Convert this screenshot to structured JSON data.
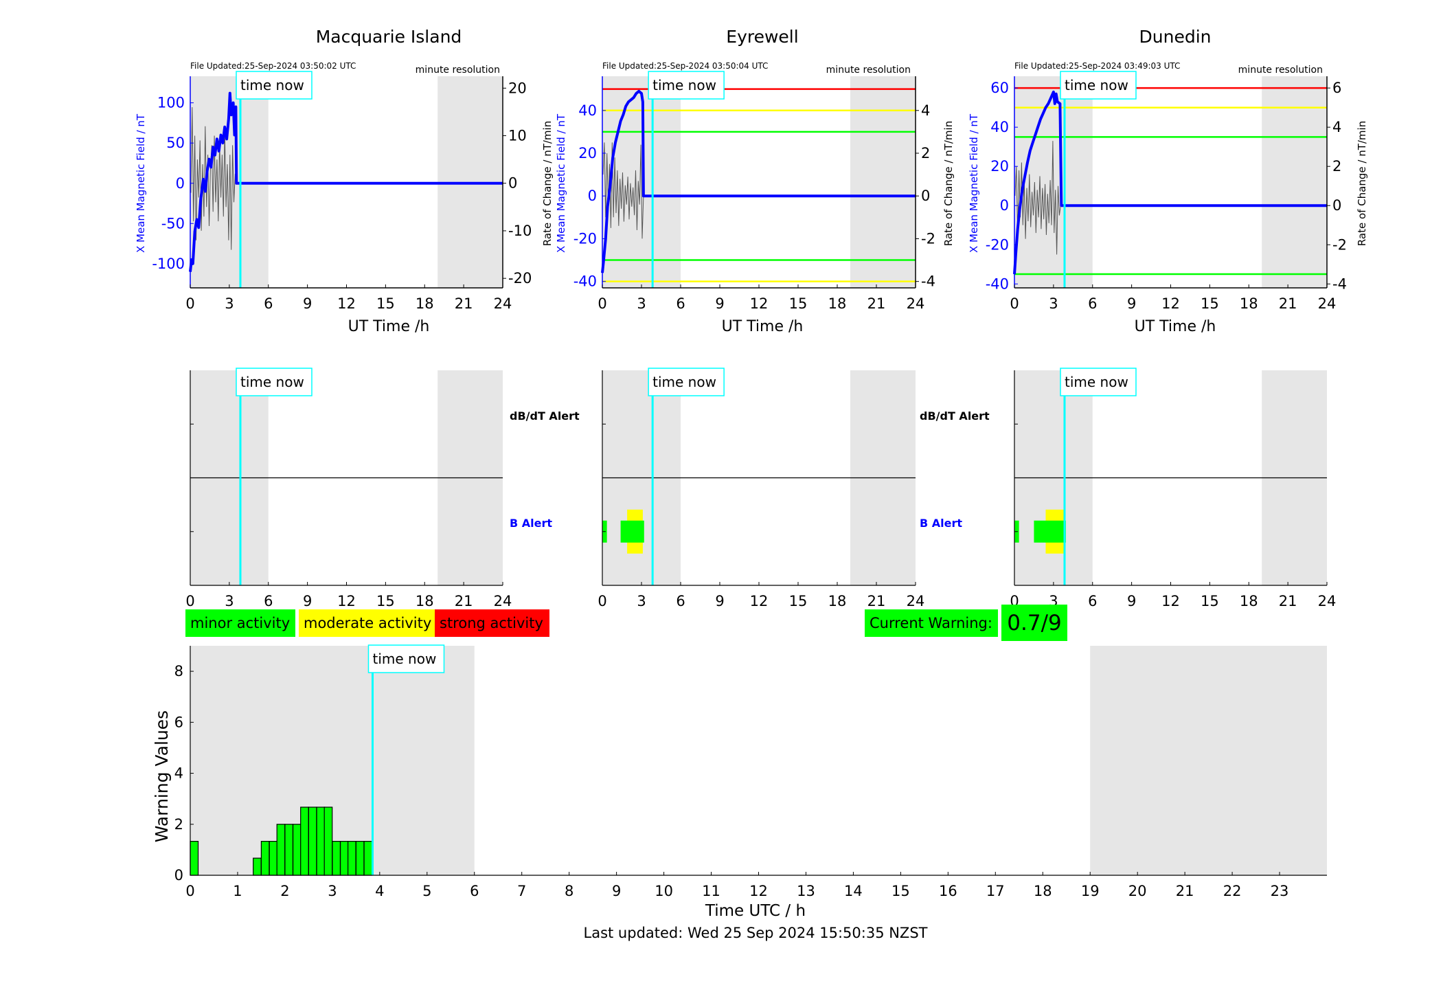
{
  "colors": {
    "minor": "#00ff00",
    "moderate": "#ffff00",
    "strong": "#ff0000",
    "field": "#0000ff",
    "now": "#00ffff",
    "shade": "#e6e6e6"
  },
  "now_label": "time now",
  "legend": {
    "minor": "minor activity",
    "moderate": "moderate activity",
    "strong": "strong activity"
  },
  "current_warning": {
    "label": "Current Warning:",
    "value": "0.7/9"
  },
  "footer": "Last updated: Wed 25 Sep 2024 15:50:35 NZST",
  "chart_data": [
    {
      "id": "macquarie",
      "type": "line",
      "title": "Macquarie Island",
      "file_updated": "File Updated:25-Sep-2024 03:50:02 UTC",
      "resolution": "minute resolution",
      "xlabel": "UT Time /h",
      "ylabel_left": "X Mean Magnetic Field / nT",
      "ylabel_right": "Rate of Change / nT/min",
      "xlim": [
        0,
        24
      ],
      "xticks": [
        0,
        3,
        6,
        9,
        12,
        15,
        18,
        21,
        24
      ],
      "ylim_left": [
        -130,
        133
      ],
      "yticks_left": [
        -100,
        -50,
        0,
        50,
        100
      ],
      "ylim_right": [
        -22,
        22.5
      ],
      "yticks_right": [
        -20,
        -10,
        0,
        10,
        20
      ],
      "now": 3.85,
      "shade": [
        [
          0,
          6
        ],
        [
          19,
          24
        ]
      ],
      "thresholds": [],
      "field": [
        [
          0,
          -110
        ],
        [
          0.1,
          -95
        ],
        [
          0.2,
          -100
        ],
        [
          0.35,
          -60
        ],
        [
          0.5,
          -45
        ],
        [
          0.65,
          -55
        ],
        [
          0.8,
          -20
        ],
        [
          1,
          5
        ],
        [
          1.15,
          -10
        ],
        [
          1.3,
          15
        ],
        [
          1.45,
          30
        ],
        [
          1.6,
          20
        ],
        [
          1.75,
          45
        ],
        [
          1.9,
          35
        ],
        [
          2.05,
          55
        ],
        [
          2.2,
          40
        ],
        [
          2.35,
          60
        ],
        [
          2.5,
          50
        ],
        [
          2.65,
          70
        ],
        [
          2.8,
          55
        ],
        [
          2.95,
          80
        ],
        [
          3.05,
          112
        ],
        [
          3.15,
          85
        ],
        [
          3.3,
          100
        ],
        [
          3.4,
          60
        ],
        [
          3.5,
          95
        ],
        [
          3.55,
          0
        ],
        [
          24,
          0
        ]
      ],
      "rate": [
        [
          0.05,
          -2
        ],
        [
          0.15,
          16
        ],
        [
          0.25,
          -8
        ],
        [
          0.35,
          10
        ],
        [
          0.45,
          -12
        ],
        [
          0.55,
          5
        ],
        [
          0.65,
          -3
        ],
        [
          0.75,
          9
        ],
        [
          0.85,
          -10
        ],
        [
          0.95,
          4
        ],
        [
          1.05,
          -7
        ],
        [
          1.15,
          12
        ],
        [
          1.25,
          -5
        ],
        [
          1.35,
          6
        ],
        [
          1.45,
          -9
        ],
        [
          1.55,
          3
        ],
        [
          1.65,
          8
        ],
        [
          1.75,
          -6
        ],
        [
          1.85,
          10
        ],
        [
          1.95,
          -4
        ],
        [
          2.05,
          5
        ],
        [
          2.15,
          -8
        ],
        [
          2.25,
          9
        ],
        [
          2.35,
          -3
        ],
        [
          2.45,
          6
        ],
        [
          2.55,
          -7
        ],
        [
          2.65,
          11
        ],
        [
          2.75,
          -5
        ],
        [
          2.85,
          4
        ],
        [
          2.95,
          -12
        ],
        [
          3.05,
          6
        ],
        [
          3.15,
          -14
        ],
        [
          3.25,
          8
        ],
        [
          3.35,
          -4
        ],
        [
          3.45,
          2
        ],
        [
          3.55,
          0
        ],
        [
          24,
          0
        ]
      ]
    },
    {
      "id": "eyrewell",
      "type": "line",
      "title": "Eyrewell",
      "file_updated": "File Updated:25-Sep-2024 03:50:04 UTC",
      "resolution": "minute resolution",
      "xlabel": "UT Time /h",
      "ylabel_left": "X Mean Magnetic Field / nT",
      "ylabel_right": "Rate of Change / nT/min",
      "xlim": [
        0,
        24
      ],
      "xticks": [
        0,
        3,
        6,
        9,
        12,
        15,
        18,
        21,
        24
      ],
      "ylim_left": [
        -43,
        56
      ],
      "yticks_left": [
        -40,
        -20,
        0,
        20,
        40
      ],
      "ylim_right": [
        -4.3,
        5.6
      ],
      "yticks_right": [
        -4,
        -2,
        0,
        2,
        4
      ],
      "now": 3.85,
      "shade": [
        [
          0,
          6
        ],
        [
          19,
          24
        ]
      ],
      "thresholds": [
        {
          "color": "red",
          "value": 50
        },
        {
          "color": "yellow",
          "value": 40
        },
        {
          "color": "yellow",
          "value": -40
        },
        {
          "color": "green",
          "value": 30
        },
        {
          "color": "green",
          "value": -30
        }
      ],
      "field": [
        [
          0,
          -36
        ],
        [
          0.1,
          -30
        ],
        [
          0.25,
          -20
        ],
        [
          0.4,
          -5
        ],
        [
          0.6,
          5
        ],
        [
          0.8,
          18
        ],
        [
          1,
          25
        ],
        [
          1.2,
          30
        ],
        [
          1.4,
          35
        ],
        [
          1.6,
          38
        ],
        [
          1.8,
          42
        ],
        [
          2,
          44
        ],
        [
          2.2,
          45
        ],
        [
          2.4,
          46
        ],
        [
          2.6,
          48
        ],
        [
          2.8,
          49
        ],
        [
          3,
          48
        ],
        [
          3.1,
          44
        ],
        [
          3.15,
          0
        ],
        [
          24,
          0
        ]
      ],
      "rate": [
        [
          0.05,
          1
        ],
        [
          0.15,
          2.5
        ],
        [
          0.25,
          -1
        ],
        [
          0.35,
          2
        ],
        [
          0.45,
          -0.5
        ],
        [
          0.55,
          1.5
        ],
        [
          0.65,
          -1.5
        ],
        [
          0.75,
          2.5
        ],
        [
          0.85,
          -1
        ],
        [
          0.95,
          1.8
        ],
        [
          1.05,
          -0.8
        ],
        [
          1.15,
          1.2
        ],
        [
          1.25,
          -1.4
        ],
        [
          1.35,
          0.8
        ],
        [
          1.45,
          -0.6
        ],
        [
          1.55,
          1.1
        ],
        [
          1.65,
          -1.2
        ],
        [
          1.75,
          0.5
        ],
        [
          1.85,
          -0.4
        ],
        [
          1.95,
          0.9
        ],
        [
          2.05,
          -1.1
        ],
        [
          2.15,
          0.6
        ],
        [
          2.25,
          -0.5
        ],
        [
          2.35,
          0.4
        ],
        [
          2.45,
          -0.9
        ],
        [
          2.55,
          1.2
        ],
        [
          2.65,
          -1.6
        ],
        [
          2.75,
          0.7
        ],
        [
          2.85,
          -0.4
        ],
        [
          2.95,
          2.4
        ],
        [
          3.05,
          -2
        ],
        [
          3.15,
          0
        ],
        [
          24,
          0
        ]
      ]
    },
    {
      "id": "dunedin",
      "type": "line",
      "title": "Dunedin",
      "file_updated": "File Updated:25-Sep-2024 03:49:03 UTC",
      "resolution": "minute resolution",
      "xlabel": "UT Time /h",
      "ylabel_left": "X Mean Magnetic Field / nT",
      "ylabel_right": "Rate of Change / nT/min",
      "xlim": [
        0,
        24
      ],
      "xticks": [
        0,
        3,
        6,
        9,
        12,
        15,
        18,
        21,
        24
      ],
      "ylim_left": [
        -42,
        66
      ],
      "yticks_left": [
        -40,
        -20,
        0,
        20,
        40,
        60
      ],
      "ylim_right": [
        -4.2,
        6.6
      ],
      "yticks_right": [
        -4,
        -2,
        0,
        2,
        4,
        6
      ],
      "now": 3.85,
      "shade": [
        [
          0,
          6
        ],
        [
          19,
          24
        ]
      ],
      "thresholds": [
        {
          "color": "red",
          "value": 60
        },
        {
          "color": "yellow",
          "value": 50
        },
        {
          "color": "green",
          "value": 35
        },
        {
          "color": "green",
          "value": -35
        }
      ],
      "field": [
        [
          0,
          -35
        ],
        [
          0.1,
          -25
        ],
        [
          0.25,
          -12
        ],
        [
          0.4,
          -2
        ],
        [
          0.6,
          8
        ],
        [
          0.8,
          15
        ],
        [
          1,
          22
        ],
        [
          1.2,
          28
        ],
        [
          1.4,
          32
        ],
        [
          1.6,
          36
        ],
        [
          1.8,
          40
        ],
        [
          2,
          44
        ],
        [
          2.2,
          47
        ],
        [
          2.4,
          50
        ],
        [
          2.6,
          52
        ],
        [
          2.8,
          55
        ],
        [
          3,
          58
        ],
        [
          3.1,
          52
        ],
        [
          3.2,
          57
        ],
        [
          3.3,
          53
        ],
        [
          3.5,
          52
        ],
        [
          3.6,
          0
        ],
        [
          24,
          0
        ]
      ],
      "rate": [
        [
          0.05,
          0.5
        ],
        [
          0.15,
          2
        ],
        [
          0.25,
          -1.5
        ],
        [
          0.35,
          1.8
        ],
        [
          0.45,
          -0.6
        ],
        [
          0.55,
          2.2
        ],
        [
          0.65,
          -1
        ],
        [
          0.75,
          1.4
        ],
        [
          0.85,
          -1.7
        ],
        [
          0.95,
          0.9
        ],
        [
          1.05,
          -0.8
        ],
        [
          1.15,
          1.6
        ],
        [
          1.25,
          -1.1
        ],
        [
          1.35,
          0.7
        ],
        [
          1.45,
          -0.5
        ],
        [
          1.55,
          1.2
        ],
        [
          1.65,
          -1.4
        ],
        [
          1.75,
          0.8
        ],
        [
          1.85,
          -0.6
        ],
        [
          1.95,
          1.5
        ],
        [
          2.05,
          -1.2
        ],
        [
          2.15,
          0.9
        ],
        [
          2.25,
          -0.7
        ],
        [
          2.35,
          1.1
        ],
        [
          2.45,
          -1.5
        ],
        [
          2.55,
          0.6
        ],
        [
          2.65,
          -0.9
        ],
        [
          2.75,
          1.3
        ],
        [
          2.85,
          -1
        ],
        [
          2.95,
          3.3
        ],
        [
          3.05,
          -1.4
        ],
        [
          3.15,
          0.8
        ],
        [
          3.25,
          -2.5
        ],
        [
          3.35,
          1
        ],
        [
          3.45,
          -0.5
        ],
        [
          3.55,
          0
        ],
        [
          24,
          0
        ]
      ]
    },
    {
      "id": "alert-macquarie",
      "type": "heatmap",
      "title": "",
      "rows": [
        "dB/dT Alert",
        "B Alert"
      ],
      "xlim": [
        0,
        24
      ],
      "xticks": [
        0,
        3,
        6,
        9,
        12,
        15,
        18,
        21,
        24
      ],
      "now": 3.85,
      "shade": [
        [
          0,
          6
        ],
        [
          19,
          24
        ]
      ],
      "blocks": []
    },
    {
      "id": "alert-eyrewell",
      "type": "heatmap",
      "title": "",
      "rows": [
        "dB/dT Alert",
        "B Alert"
      ],
      "xlim": [
        0,
        24
      ],
      "xticks": [
        0,
        3,
        6,
        9,
        12,
        15,
        18,
        21,
        24
      ],
      "now": 3.85,
      "shade": [
        [
          0,
          6
        ],
        [
          19,
          24
        ]
      ],
      "blocks": [
        {
          "row": "B Alert",
          "x0": 0,
          "x1": 0.35,
          "level": "minor"
        },
        {
          "row": "B Alert",
          "x0": 1.9,
          "x1": 3.1,
          "level": "moderate"
        },
        {
          "row": "B Alert",
          "x0": 1.4,
          "x1": 3.2,
          "level": "minor"
        }
      ]
    },
    {
      "id": "alert-dunedin",
      "type": "heatmap",
      "title": "",
      "rows": [
        "dB/dT Alert",
        "B Alert"
      ],
      "xlim": [
        0,
        24
      ],
      "xticks": [
        0,
        3,
        6,
        9,
        12,
        15,
        18,
        21,
        24
      ],
      "now": 3.85,
      "shade": [
        [
          0,
          6
        ],
        [
          19,
          24
        ]
      ],
      "blocks": [
        {
          "row": "B Alert",
          "x0": 0,
          "x1": 0.35,
          "level": "minor"
        },
        {
          "row": "B Alert",
          "x0": 2.4,
          "x1": 3.9,
          "level": "moderate"
        },
        {
          "row": "B Alert",
          "x0": 1.5,
          "x1": 3.95,
          "level": "minor"
        }
      ]
    },
    {
      "id": "warning",
      "type": "bar",
      "title": "",
      "xlabel": "Time UTC / h",
      "ylabel": "Warning Values",
      "xlim": [
        0,
        24
      ],
      "ylim": [
        0,
        9
      ],
      "xticks": [
        0,
        1,
        2,
        3,
        4,
        5,
        6,
        7,
        8,
        9,
        10,
        11,
        12,
        13,
        14,
        15,
        16,
        17,
        18,
        19,
        20,
        21,
        22,
        23
      ],
      "yticks": [
        0,
        2,
        4,
        6,
        8
      ],
      "now": 3.85,
      "shade": [
        [
          0,
          6
        ],
        [
          19,
          24
        ]
      ],
      "bar_width": 0.1667,
      "bars": [
        [
          0,
          1.33
        ],
        [
          1.33,
          0.67
        ],
        [
          1.5,
          1.33
        ],
        [
          1.67,
          1.33
        ],
        [
          1.83,
          2
        ],
        [
          2,
          2
        ],
        [
          2.17,
          2
        ],
        [
          2.33,
          2.67
        ],
        [
          2.5,
          2.67
        ],
        [
          2.67,
          2.67
        ],
        [
          2.83,
          2.67
        ],
        [
          3,
          1.33
        ],
        [
          3.17,
          1.33
        ],
        [
          3.33,
          1.33
        ],
        [
          3.5,
          1.33
        ],
        [
          3.67,
          1.33
        ]
      ]
    }
  ]
}
